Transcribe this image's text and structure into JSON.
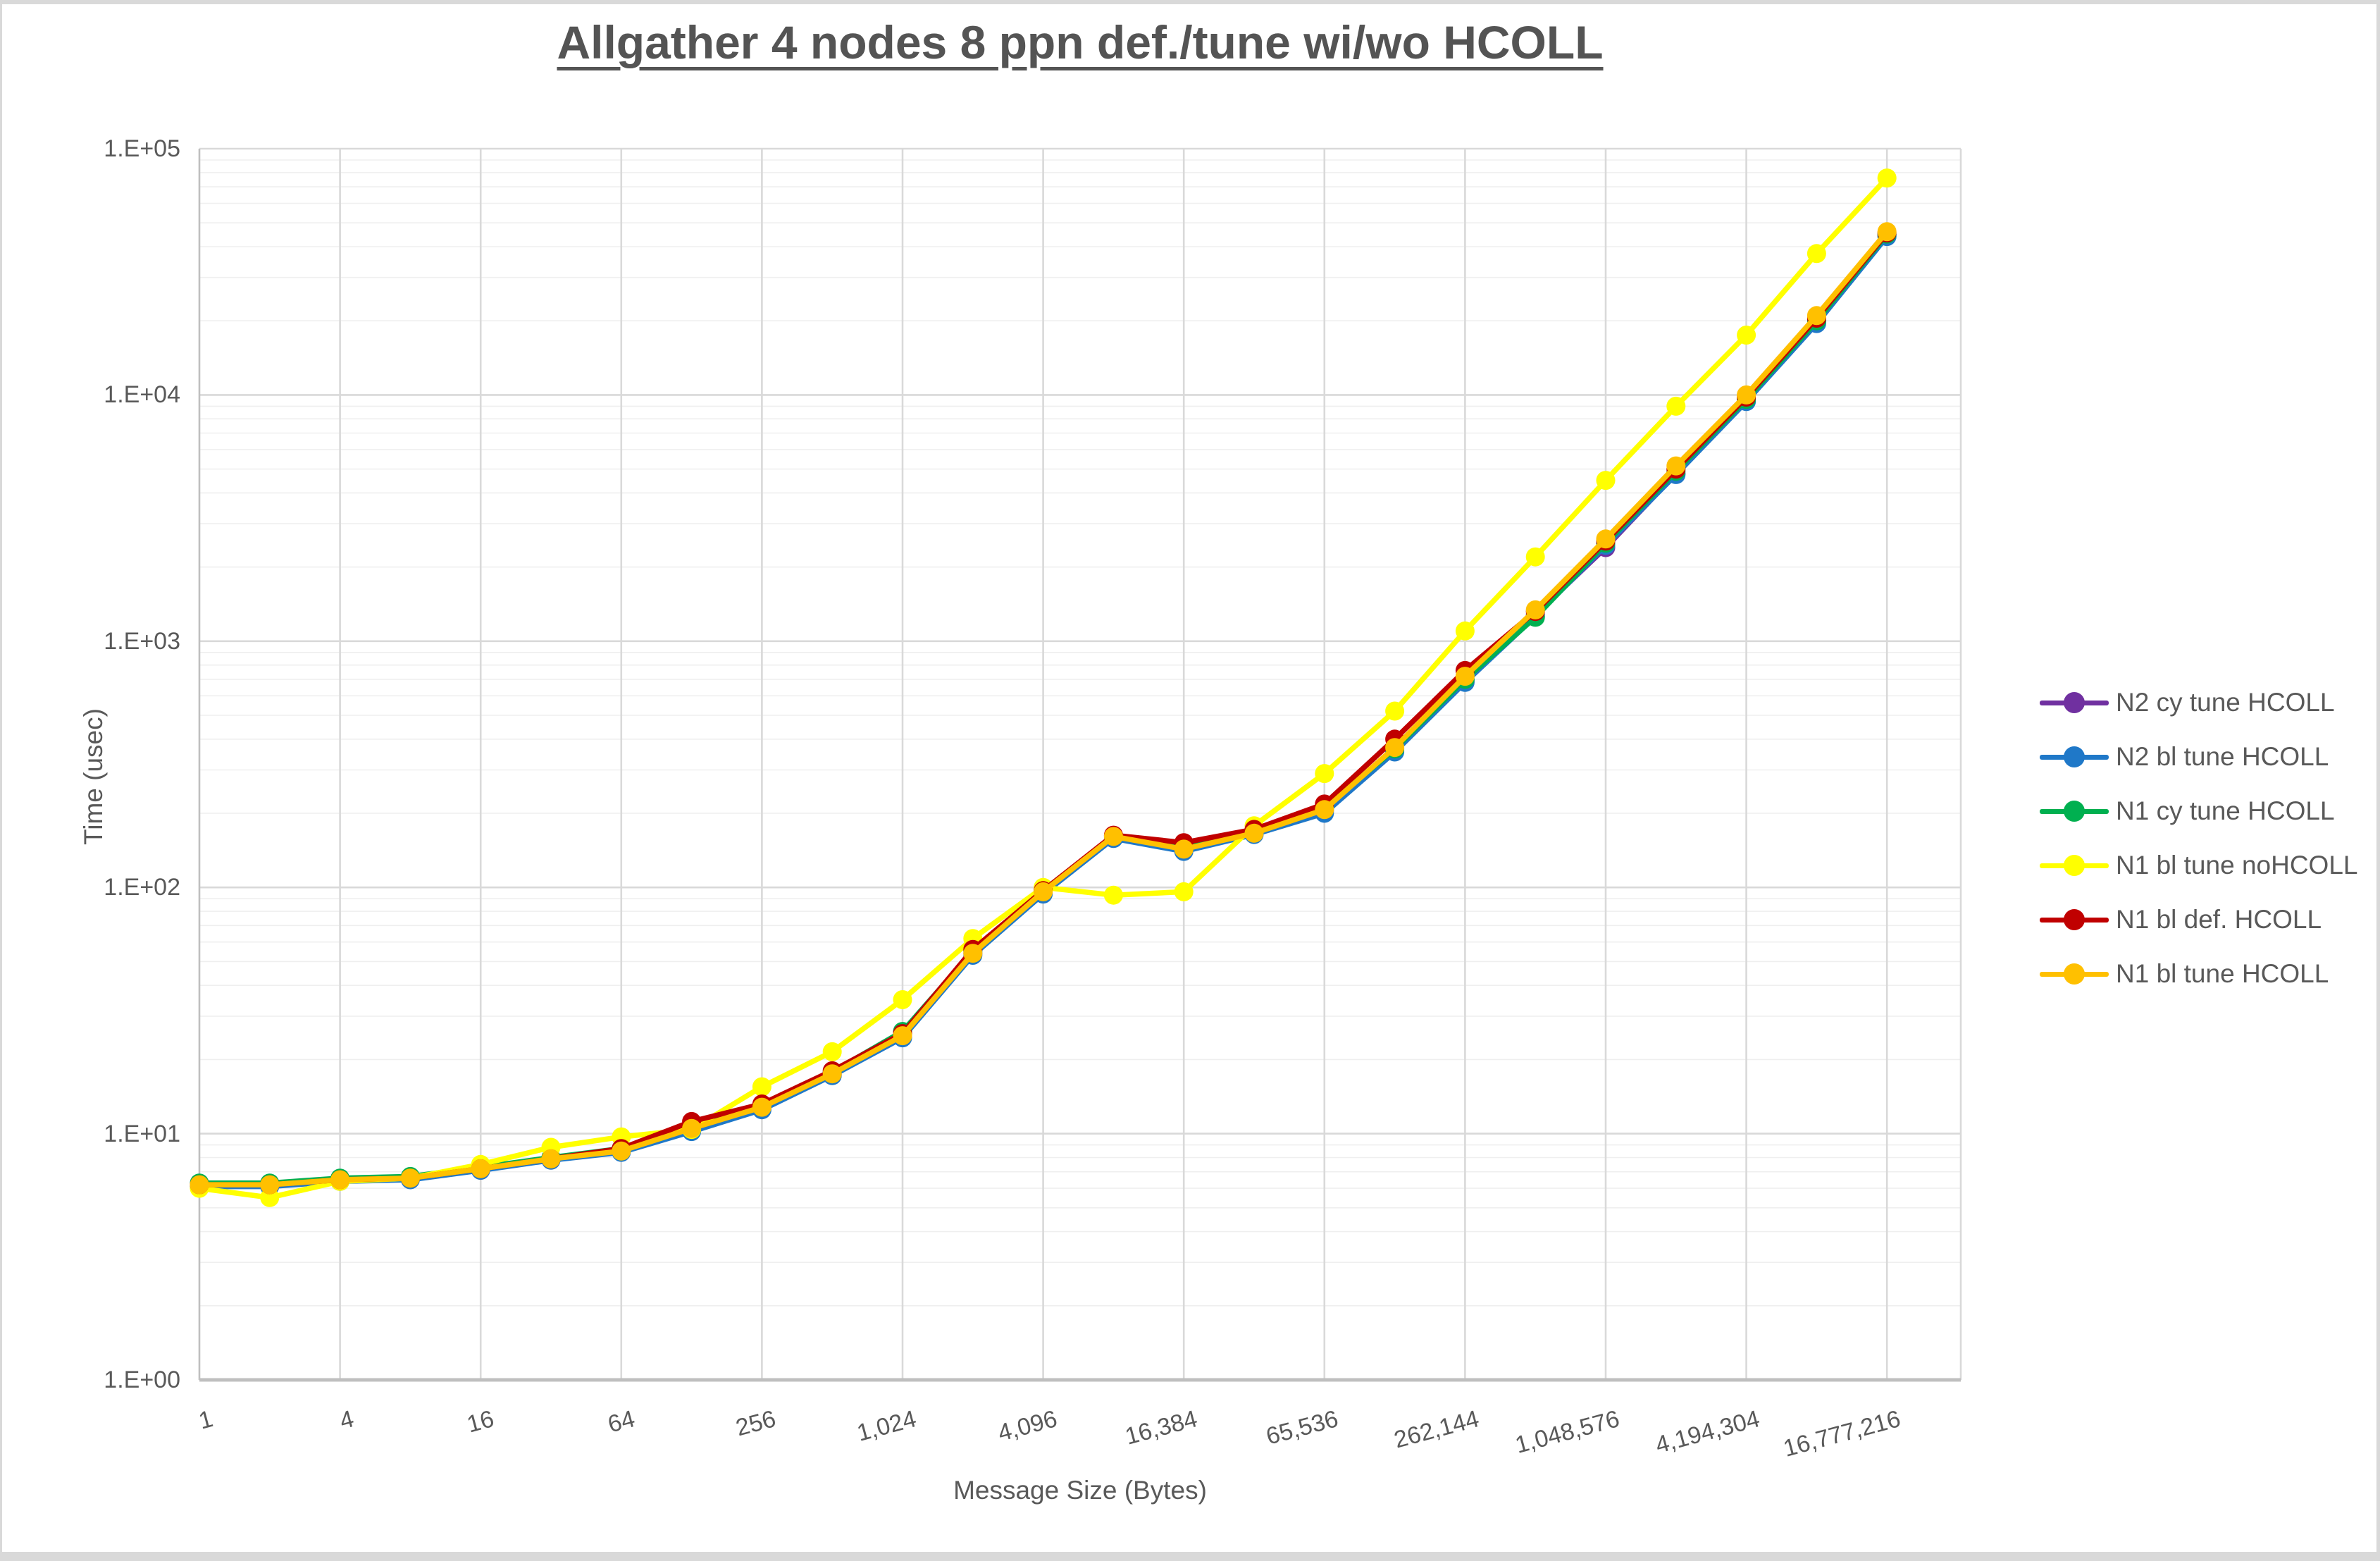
{
  "page": {
    "title": "Allgather 4 nodes 8 ppn def./tune wi/wo HCOLL"
  },
  "axes": {
    "y_title": "Time (usec)",
    "x_title": "Message Size (Bytes)",
    "y_tick_labels": [
      "1.E+00",
      "1.E+01",
      "1.E+02",
      "1.E+03",
      "1.E+04",
      "1.E+05"
    ],
    "x_tick_labels": [
      "1",
      "4",
      "16",
      "64",
      "256",
      "1,024",
      "4,096",
      "16,384",
      "65,536",
      "262,144",
      "1,048,576",
      "4,194,304",
      "16,777,216"
    ]
  },
  "legend": {
    "entries": [
      {
        "label": "N2 cy tune HCOLL",
        "color": "#7030a0"
      },
      {
        "label": "N2 bl tune HCOLL",
        "color": "#1f78c8"
      },
      {
        "label": "N1 cy tune HCOLL",
        "color": "#00b050"
      },
      {
        "label": "N1 bl tune noHCOLL",
        "color": "#ffff00"
      },
      {
        "label": "N1 bl def. HCOLL",
        "color": "#c00000"
      },
      {
        "label": "N1 bl tune HCOLL",
        "color": "#ffc000"
      }
    ]
  },
  "chart_data": {
    "type": "line",
    "title": "Allgather 4 nodes 8 ppn def./tune wi/wo HCOLL",
    "xlabel": "Message Size (Bytes)",
    "ylabel": "Time (usec)",
    "x_scale": "log2",
    "y_scale": "log10",
    "ylim": [
      1,
      100000
    ],
    "xlim": [
      1,
      16777216
    ],
    "grid": "major-and-minor-log",
    "legend_position": "right",
    "x": [
      1,
      2,
      4,
      8,
      16,
      32,
      64,
      128,
      256,
      512,
      1024,
      2048,
      4096,
      8192,
      16384,
      32768,
      65536,
      131072,
      262144,
      524288,
      1048576,
      2097152,
      4194304,
      8388608,
      16777216
    ],
    "x_tick_values": [
      1,
      4,
      16,
      64,
      256,
      1024,
      4096,
      16384,
      65536,
      262144,
      1048576,
      4194304,
      16777216
    ],
    "y_tick_values": [
      1,
      10,
      100,
      1000,
      10000,
      100000
    ],
    "series": [
      {
        "name": "N2 cy tune HCOLL",
        "color": "#7030a0",
        "values": [
          6.2,
          6.2,
          6.5,
          6.6,
          7.2,
          7.9,
          8.5,
          10.4,
          12.7,
          17.4,
          25,
          54,
          95,
          160,
          146,
          167,
          205,
          360,
          690,
          1280,
          2400,
          4800,
          9500,
          19800,
          44500
        ]
      },
      {
        "name": "N2 bl tune HCOLL",
        "color": "#1f78c8",
        "values": [
          6.1,
          6.1,
          6.4,
          6.5,
          7.1,
          7.8,
          8.4,
          10.2,
          12.5,
          17.2,
          24.5,
          53,
          94,
          158,
          140,
          164,
          200,
          355,
          680,
          1260,
          2450,
          4750,
          9400,
          19500,
          44000
        ]
      },
      {
        "name": "N1 cy tune HCOLL",
        "color": "#00b050",
        "values": [
          6.3,
          6.3,
          6.6,
          6.7,
          7.3,
          8.0,
          8.7,
          10.6,
          13.0,
          17.8,
          26,
          55,
          97,
          162,
          149,
          170,
          210,
          365,
          700,
          1250,
          2500,
          4900,
          9600,
          20000,
          45000
        ]
      },
      {
        "name": "N1 bl tune noHCOLL",
        "color": "#ffff00",
        "values": [
          6.0,
          5.5,
          6.4,
          6.6,
          7.5,
          8.8,
          9.7,
          10.4,
          15.5,
          21.5,
          35,
          62,
          100,
          93,
          96,
          178,
          290,
          520,
          1100,
          2200,
          4500,
          9000,
          17500,
          37500,
          76000
        ]
      },
      {
        "name": "N1 bl def. HCOLL",
        "color": "#c00000",
        "values": [
          6.2,
          6.2,
          6.5,
          6.6,
          7.2,
          7.9,
          8.7,
          11.2,
          13.2,
          18.0,
          25.5,
          56,
          97,
          163,
          152,
          172,
          218,
          400,
          760,
          1320,
          2550,
          5000,
          9800,
          20500,
          45500
        ]
      },
      {
        "name": "N1 bl tune HCOLL",
        "color": "#ffc000",
        "values": [
          6.2,
          6.2,
          6.5,
          6.6,
          7.2,
          7.9,
          8.5,
          10.5,
          12.8,
          17.5,
          25,
          54,
          96,
          161,
          143,
          166,
          207,
          370,
          720,
          1340,
          2600,
          5150,
          10000,
          21000,
          46000
        ]
      }
    ]
  },
  "style": {
    "grid_major": "#d9d9d9",
    "grid_minor": "#efefef",
    "axis_line": "#bfbfbf",
    "text_gray": "#595959",
    "frame_gray": "#d9d9d9",
    "background": "#ffffff"
  }
}
